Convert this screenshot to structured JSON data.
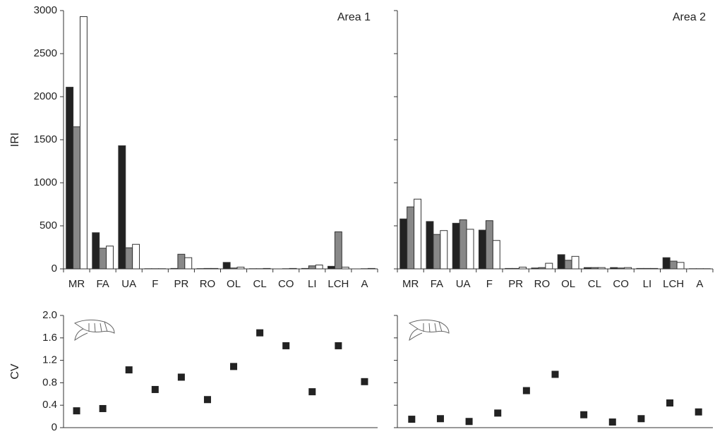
{
  "chart_data": [
    {
      "type": "bar",
      "title": "Area 1",
      "ylabel": "IRI",
      "categories": [
        "MR",
        "FA",
        "UA",
        "F",
        "PR",
        "RO",
        "OL",
        "CL",
        "CO",
        "LI",
        "LCH",
        "A"
      ],
      "series": [
        {
          "color": "#222222",
          "values": [
            2110,
            420,
            1430,
            2,
            5,
            3,
            75,
            2,
            0,
            5,
            30,
            0
          ]
        },
        {
          "color": "#888888",
          "values": [
            1650,
            240,
            245,
            2,
            170,
            5,
            10,
            2,
            2,
            35,
            430,
            2
          ]
        },
        {
          "color": "#ffffff",
          "values": [
            2930,
            265,
            285,
            2,
            130,
            5,
            20,
            5,
            5,
            45,
            20,
            5
          ]
        }
      ],
      "ylim": [
        0,
        3000
      ],
      "yticks": [
        0,
        500,
        1000,
        1500,
        2000,
        2500,
        3000
      ],
      "ytick_labels": true
    },
    {
      "type": "bar",
      "title": "Area 2",
      "categories": [
        "MR",
        "FA",
        "UA",
        "F",
        "PR",
        "RO",
        "OL",
        "CL",
        "CO",
        "LI",
        "LCH",
        "A"
      ],
      "series": [
        {
          "color": "#222222",
          "values": [
            580,
            550,
            530,
            450,
            5,
            10,
            165,
            15,
            15,
            5,
            130,
            2
          ]
        },
        {
          "color": "#888888",
          "values": [
            720,
            400,
            570,
            560,
            5,
            15,
            100,
            15,
            10,
            5,
            90,
            2
          ]
        },
        {
          "color": "#ffffff",
          "values": [
            810,
            445,
            460,
            330,
            20,
            65,
            145,
            15,
            15,
            5,
            75,
            2
          ]
        }
      ],
      "ylim": [
        0,
        3000
      ],
      "yticks": [
        0,
        500,
        1000,
        1500,
        2000,
        2500,
        3000
      ],
      "ytick_labels": false
    },
    {
      "type": "scatter",
      "ylabel": "CV",
      "categories": [
        null,
        null,
        null,
        null,
        null,
        null,
        null,
        null,
        null,
        null,
        null,
        null
      ],
      "series": [
        {
          "color": "#222222",
          "values": [
            0.3,
            0.34,
            1.03,
            0.68,
            0.9,
            0.5,
            1.09,
            1.69,
            1.46,
            0.64,
            1.46,
            0.82
          ]
        }
      ],
      "ylim": [
        0,
        2
      ],
      "yticks": [
        0,
        0.4,
        0.8,
        1.2,
        1.6,
        {
          "value": 2,
          "label": "2.0"
        }
      ],
      "ytick_labels": true
    },
    {
      "type": "scatter",
      "categories": [
        null,
        null,
        null,
        null,
        null,
        null,
        null,
        null,
        null,
        null,
        null
      ],
      "series": [
        {
          "color": "#222222",
          "values": [
            0.15,
            0.16,
            0.11,
            0.26,
            0.66,
            0.95,
            0.23,
            0.1,
            0.16,
            0.44,
            0.28
          ]
        }
      ],
      "ylim": [
        0,
        2
      ],
      "yticks": [
        0,
        0.4,
        0.8,
        1.2,
        1.6,
        {
          "value": 2,
          "label": "2.0"
        }
      ],
      "ytick_labels": false
    }
  ]
}
